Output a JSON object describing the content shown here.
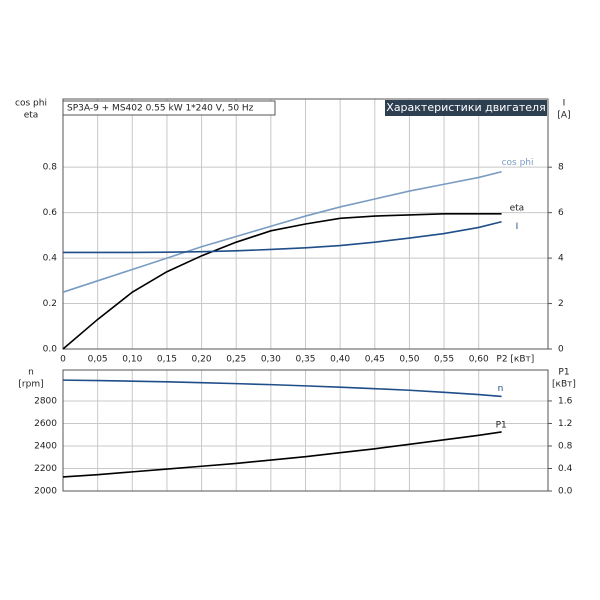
{
  "chart_data": [
    {
      "type": "line",
      "title": "SP3A-9 + MS402   0.55 kW   1*240 V, 50 Hz",
      "banner": "Характеристики двигателя",
      "ylabel": [
        "cos phi",
        "eta"
      ],
      "y2label": [
        "I",
        "[A]"
      ],
      "xlabel": "P2 [кВт]",
      "xlim": [
        0,
        0.7
      ],
      "xticks": [
        0,
        {
          "value": 0.05,
          "label": "0,05"
        },
        {
          "value": 0.1,
          "label": "0,10"
        },
        {
          "value": 0.15,
          "label": "0,15"
        },
        {
          "value": 0.2,
          "label": "0,20"
        },
        {
          "value": 0.25,
          "label": "0,25"
        },
        {
          "value": 0.3,
          "label": "0,30"
        },
        {
          "value": 0.35,
          "label": "0,35"
        },
        {
          "value": 0.4,
          "label": "0,40"
        },
        {
          "value": 0.45,
          "label": "0,45"
        },
        {
          "value": 0.5,
          "label": "0,50"
        },
        {
          "value": 0.55,
          "label": "0,55"
        },
        {
          "value": 0.6,
          "label": "0,60"
        }
      ],
      "ylim": [
        0,
        1.1
      ],
      "yticks": [
        {
          "value": 0,
          "label": "0.0"
        },
        0.2,
        0.4,
        0.6,
        0.8
      ],
      "y2lim": [
        0,
        11
      ],
      "y2ticks": [
        0,
        2,
        4,
        6,
        8
      ],
      "grid": true,
      "x": [
        0,
        0.05,
        0.1,
        0.15,
        0.2,
        0.25,
        0.3,
        0.35,
        0.4,
        0.45,
        0.5,
        0.55,
        0.6,
        0.633
      ],
      "series": [
        {
          "name": "cos phi",
          "color": "#7b9cc2",
          "values": [
            0.25,
            0.3,
            0.35,
            0.4,
            0.45,
            0.495,
            0.54,
            0.585,
            0.625,
            0.66,
            0.695,
            0.725,
            0.755,
            0.78
          ]
        },
        {
          "name": "eta",
          "color": "#000000",
          "values": [
            0,
            0.13,
            0.25,
            0.34,
            0.41,
            0.47,
            0.52,
            0.55,
            0.575,
            0.585,
            0.59,
            0.595,
            0.595,
            0.595
          ]
        },
        {
          "name": "I",
          "color": "#1f4e89",
          "axis": "y2",
          "values": [
            4.25,
            4.25,
            4.25,
            4.26,
            4.28,
            4.32,
            4.38,
            4.45,
            4.55,
            4.7,
            4.88,
            5.08,
            5.35,
            5.6
          ]
        }
      ]
    },
    {
      "type": "line",
      "ylabel": [
        "n",
        "[rpm]"
      ],
      "y2label": [
        "P1",
        "[кВт]"
      ],
      "xlim": [
        0,
        0.7
      ],
      "xticks": [
        0,
        0.05,
        0.1,
        0.15,
        0.2,
        0.25,
        0.3,
        0.35,
        0.4,
        0.45,
        0.5,
        0.55,
        0.6
      ],
      "ylim": [
        2000,
        3075
      ],
      "yticks": [
        2000,
        2200,
        2400,
        2600,
        2800
      ],
      "y2lim": [
        0,
        2.15
      ],
      "y2ticks": [
        {
          "value": 0,
          "label": "0.0"
        },
        0.4,
        0.8,
        1.2,
        1.6
      ],
      "grid": true,
      "x": [
        0,
        0.05,
        0.1,
        0.15,
        0.2,
        0.25,
        0.3,
        0.35,
        0.4,
        0.45,
        0.5,
        0.55,
        0.6,
        0.633
      ],
      "series": [
        {
          "name": "n",
          "color": "#1f4e89",
          "values": [
            2985,
            2981,
            2976,
            2970,
            2962,
            2954,
            2945,
            2934,
            2922,
            2909,
            2895,
            2877,
            2857,
            2840
          ]
        },
        {
          "name": "P1",
          "color": "#000000",
          "axis": "y2",
          "values": [
            0.25,
            0.29,
            0.34,
            0.39,
            0.44,
            0.49,
            0.55,
            0.61,
            0.68,
            0.75,
            0.83,
            0.91,
            0.99,
            1.05
          ]
        }
      ]
    }
  ]
}
